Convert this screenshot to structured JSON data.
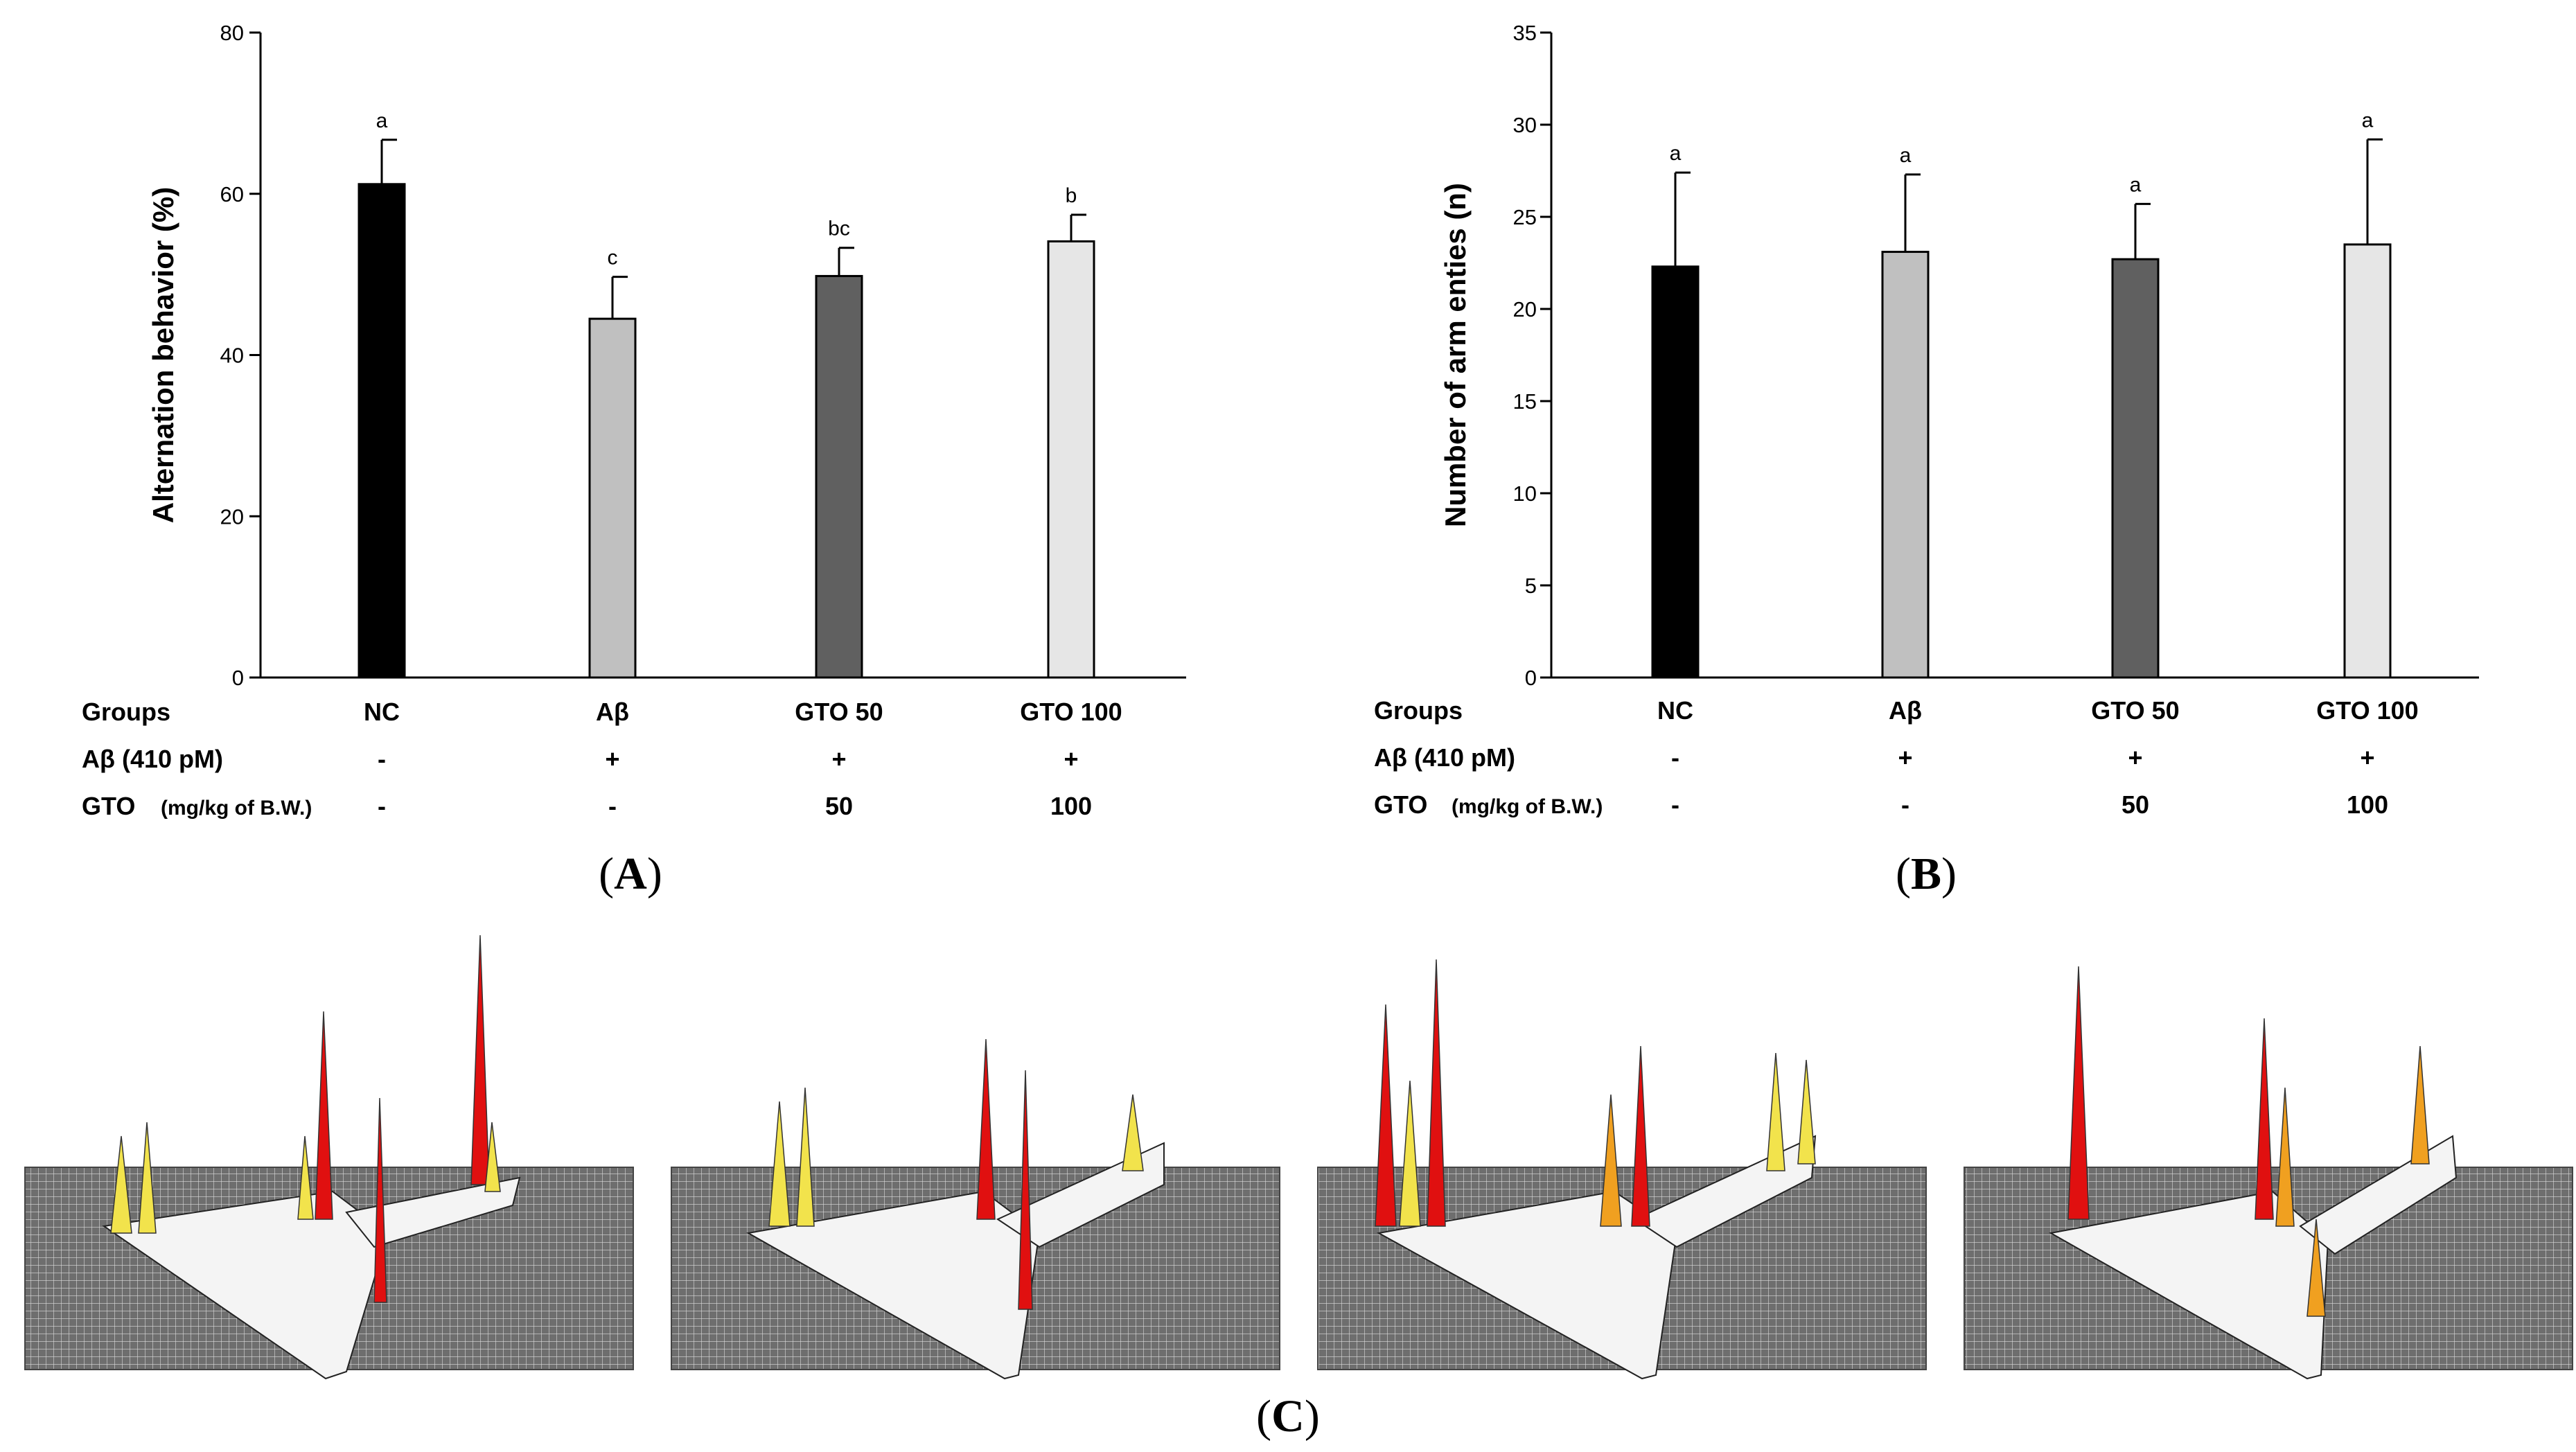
{
  "chart_data": [
    {
      "panel": "A",
      "type": "bar",
      "ylabel": "Alternation behavior (%)",
      "ylim": [
        0,
        80
      ],
      "yticks": [
        "0",
        "20",
        "40",
        "60",
        "80"
      ],
      "categories": [
        "NC",
        "Aβ",
        "GTO 50",
        "GTO 100"
      ],
      "values": [
        61.2,
        44.5,
        49.8,
        54.1
      ],
      "errors": [
        5.5,
        5.2,
        3.5,
        3.3
      ],
      "letters": [
        "a",
        "c",
        "bc",
        "b"
      ],
      "colors": [
        "#000000",
        "#c0c0c0",
        "#606060",
        "#e6e6e6"
      ]
    },
    {
      "panel": "B",
      "type": "bar",
      "ylabel": "Number of arm enties (n)",
      "ylim": [
        0,
        35
      ],
      "yticks": [
        "0",
        "5",
        "10",
        "15",
        "20",
        "25",
        "30",
        "35"
      ],
      "categories": [
        "NC",
        "Aβ",
        "GTO 50",
        "GTO 100"
      ],
      "values": [
        22.3,
        23.1,
        22.7,
        23.5
      ],
      "errors": [
        5.1,
        4.2,
        3.0,
        5.7
      ],
      "letters": [
        "a",
        "a",
        "a",
        "a"
      ],
      "colors": [
        "#000000",
        "#c0c0c0",
        "#606060",
        "#e6e6e6"
      ]
    }
  ],
  "table": {
    "row_labels": [
      "Groups",
      "Aβ (410 pM)",
      "GTO"
    ],
    "gto_unit": "(mg/kg of B.W.)",
    "groups": [
      "NC",
      "Aβ",
      "GTO 50",
      "GTO 100"
    ],
    "abeta": [
      "-",
      "+",
      "+",
      "+"
    ],
    "gto": [
      "-",
      "-",
      "50",
      "100"
    ]
  },
  "panel_labels": {
    "open": "(",
    "close": ")",
    "a": "A",
    "b": "B",
    "c": "C"
  }
}
